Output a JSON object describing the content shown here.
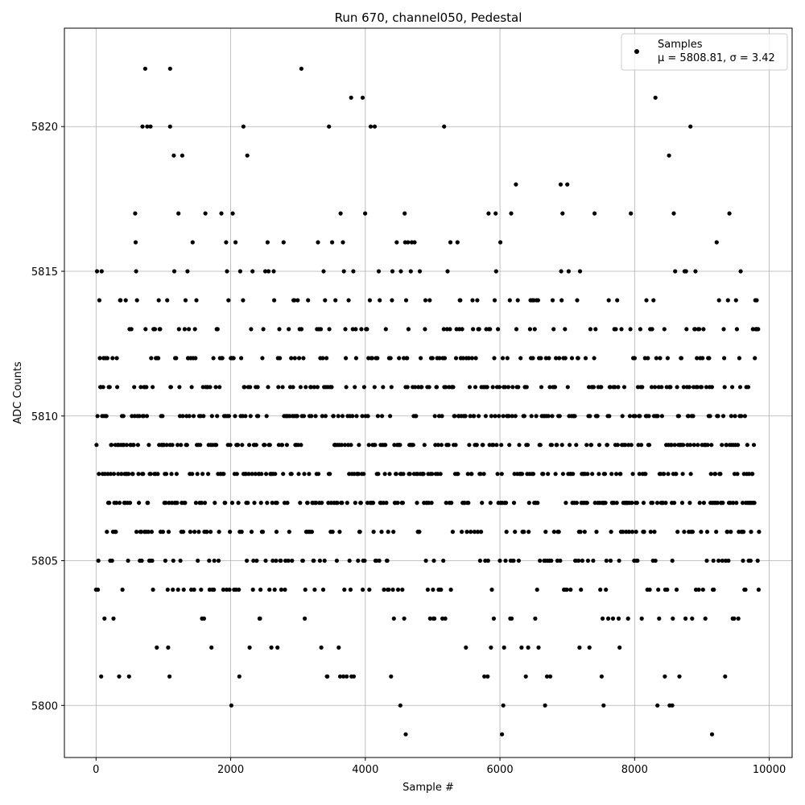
{
  "chart_data": {
    "type": "scatter",
    "title": "Run 670, channel050, Pedestal",
    "xlabel": "Sample #",
    "ylabel": "ADC Counts",
    "xlim": [
      -470,
      10340
    ],
    "ylim": [
      5798.2,
      5823.4
    ],
    "x_ticks": [
      0,
      2000,
      4000,
      6000,
      8000,
      10000
    ],
    "y_ticks": [
      5800,
      5805,
      5810,
      5815,
      5820
    ],
    "grid": true,
    "legend": {
      "position": "top-right",
      "label": "Samples",
      "stats": "μ = 5808.81, σ = 3.42"
    },
    "marker_color": "#000000",
    "series": [
      {
        "name": "Samples",
        "n_samples": 9850,
        "mean": 5808.81,
        "sigma": 3.42,
        "min": 5799,
        "max": 5822,
        "x": [
          0,
          9850
        ],
        "rare_points": [
          {
            "x": 730,
            "y": 5822
          },
          {
            "x": 1100,
            "y": 5822
          },
          {
            "x": 3050,
            "y": 5822
          },
          {
            "x": 3790,
            "y": 5821
          },
          {
            "x": 3960,
            "y": 5821
          },
          {
            "x": 8310,
            "y": 5821
          },
          {
            "x": 690,
            "y": 5820
          },
          {
            "x": 760,
            "y": 5820
          },
          {
            "x": 810,
            "y": 5820
          },
          {
            "x": 1100,
            "y": 5820
          },
          {
            "x": 2190,
            "y": 5820
          },
          {
            "x": 3460,
            "y": 5820
          },
          {
            "x": 4080,
            "y": 5820
          },
          {
            "x": 4140,
            "y": 5820
          },
          {
            "x": 5170,
            "y": 5820
          },
          {
            "x": 8830,
            "y": 5820
          },
          {
            "x": 2010,
            "y": 5800
          },
          {
            "x": 4520,
            "y": 5800
          },
          {
            "x": 6050,
            "y": 5800
          },
          {
            "x": 6670,
            "y": 5800
          },
          {
            "x": 7540,
            "y": 5800
          },
          {
            "x": 8340,
            "y": 5800
          },
          {
            "x": 8520,
            "y": 5800
          },
          {
            "x": 8560,
            "y": 5800
          },
          {
            "x": 4600,
            "y": 5799
          },
          {
            "x": 6030,
            "y": 5799
          },
          {
            "x": 9150,
            "y": 5799
          }
        ]
      }
    ]
  }
}
